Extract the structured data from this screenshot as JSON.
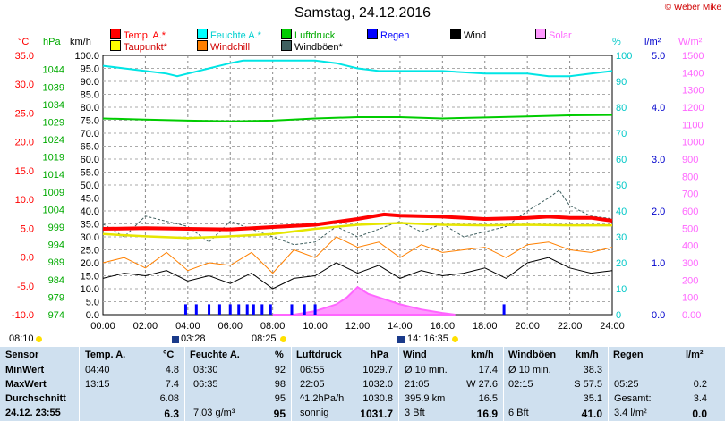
{
  "header": {
    "title": "Samstag, 24.12.2016",
    "copyright": "© Weber Mike"
  },
  "legend": [
    {
      "label": "Temp. A.*",
      "color": "#ff0000"
    },
    {
      "label": "Feuchte A.*",
      "color": "#00ffff"
    },
    {
      "label": "Luftdruck",
      "color": "#00cc00"
    },
    {
      "label": "Regen",
      "color": "#0000ff"
    },
    {
      "label": "Wind",
      "color": "#000000"
    },
    {
      "label": "Solar",
      "color": "#ff66ff"
    },
    {
      "label": "Taupunkt*",
      "color": "#ffff00"
    },
    {
      "label": "Windchill",
      "color": "#ff8000"
    },
    {
      "label": "Windböen*",
      "color": "#406060"
    }
  ],
  "colors": {
    "temp": "#ff0000",
    "humidity": "#00e5e5",
    "pressure": "#00cc00",
    "rain": "#0000ff",
    "wind": "#000000",
    "solar": "#ff66ff",
    "dewpoint": "#e6e600",
    "windchill": "#ff8000",
    "gust": "#406060",
    "table_bg": "#cfe0ef"
  },
  "chart_data": {
    "type": "line",
    "title": "Samstag, 24.12.2016",
    "x_ticks": [
      "00:00",
      "02:00",
      "04:00",
      "06:00",
      "08:00",
      "10:00",
      "12:00",
      "14:00",
      "16:00",
      "18:00",
      "20:00",
      "22:00",
      "24:00"
    ],
    "x_range_hours": [
      0,
      24
    ],
    "axes": {
      "temp": {
        "unit": "°C",
        "range": [
          -10,
          35
        ],
        "ticks": [
          "35.0",
          "30.0",
          "25.0",
          "20.0",
          "15.0",
          "10.0",
          "5.0",
          "0.0",
          "-5.0",
          "-10.0"
        ]
      },
      "pressure": {
        "unit": "hPa",
        "range": [
          974,
          1048
        ],
        "ticks": [
          "1044",
          "1039",
          "1034",
          "1029",
          "1024",
          "1019",
          "1014",
          "1009",
          "1004",
          "999",
          "994",
          "989",
          "984",
          "979",
          "974"
        ]
      },
      "wind": {
        "unit": "km/h",
        "range": [
          0,
          100
        ],
        "ticks": [
          "100.0",
          "95.0",
          "90.0",
          "85.0",
          "80.0",
          "75.0",
          "70.0",
          "65.0",
          "60.0",
          "55.0",
          "50.0",
          "45.0",
          "40.0",
          "35.0",
          "30.0",
          "25.0",
          "20.0",
          "15.0",
          "10.0",
          "5.0",
          "0.0"
        ]
      },
      "humidity": {
        "unit": "%",
        "range": [
          0,
          100
        ],
        "ticks": [
          "100",
          "90",
          "80",
          "70",
          "60",
          "50",
          "40",
          "30",
          "20",
          "10",
          "0"
        ]
      },
      "rain": {
        "unit": "l/m²",
        "range": [
          0,
          5
        ],
        "ticks": [
          "5.0",
          "4.0",
          "3.0",
          "2.0",
          "1.0",
          "0.0"
        ]
      },
      "solar": {
        "unit": "W/m²",
        "range": [
          0,
          1500
        ],
        "ticks": [
          "1500",
          "1400",
          "1300",
          "1200",
          "1100",
          "1000",
          "900",
          "800",
          "700",
          "600",
          "500",
          "400",
          "300",
          "200",
          "100",
          "0.00"
        ]
      }
    },
    "series": [
      {
        "name": "Temp. A.*",
        "axis": "temp",
        "x": [
          0,
          2,
          4,
          6,
          8,
          10,
          12,
          13.25,
          14,
          16,
          18,
          20,
          21,
          22,
          23,
          24
        ],
        "y": [
          4.9,
          5.0,
          4.9,
          4.8,
          5.2,
          5.6,
          6.6,
          7.4,
          7.2,
          7.0,
          6.6,
          6.8,
          7.0,
          6.8,
          6.8,
          6.3
        ]
      },
      {
        "name": "Taupunkt*",
        "axis": "temp",
        "x": [
          0,
          2,
          4,
          6,
          8,
          10,
          12,
          14,
          16,
          18,
          20,
          22,
          24
        ],
        "y": [
          4.0,
          3.6,
          3.3,
          3.6,
          4.0,
          4.9,
          5.6,
          5.9,
          5.6,
          5.5,
          5.6,
          5.5,
          5.5
        ]
      },
      {
        "name": "Feuchte A.*",
        "axis": "humidity",
        "x": [
          0,
          1,
          2,
          3,
          3.5,
          4,
          5,
          6,
          6.6,
          8,
          10,
          11,
          12,
          13,
          14,
          16,
          18,
          19,
          20,
          21,
          22,
          23,
          24
        ],
        "y": [
          96,
          95,
          94,
          93,
          92,
          93,
          95,
          97,
          98,
          98,
          98,
          97,
          95,
          94,
          94,
          94,
          93,
          93,
          93,
          92,
          92,
          93,
          94
        ]
      },
      {
        "name": "Luftdruck",
        "axis": "pressure",
        "x": [
          0,
          2,
          4,
          6,
          8,
          10,
          12,
          14,
          16,
          18,
          20,
          22,
          24
        ],
        "y": [
          1030.0,
          1029.7,
          1029.4,
          1029.2,
          1029.4,
          1030.0,
          1030.4,
          1030.4,
          1030.0,
          1030.3,
          1030.6,
          1030.9,
          1031.0
        ]
      },
      {
        "name": "Wind",
        "axis": "wind",
        "x": [
          0,
          1,
          2,
          3,
          4,
          5,
          6,
          7,
          8,
          9,
          10,
          11,
          12,
          13,
          14,
          15,
          16,
          17,
          18,
          19,
          20,
          21,
          22,
          23,
          24
        ],
        "y": [
          14,
          16,
          15,
          17,
          13,
          15,
          12,
          16,
          10,
          14,
          15,
          20,
          16,
          19,
          14,
          17,
          15,
          16,
          18,
          14,
          20,
          22,
          18,
          16,
          17
        ]
      },
      {
        "name": "Windchill",
        "axis": "wind",
        "x": [
          0,
          1,
          2,
          3,
          4,
          5,
          6,
          7,
          8,
          9,
          10,
          11,
          12,
          13,
          14,
          15,
          16,
          17,
          18,
          19,
          20,
          21,
          22,
          23,
          24
        ],
        "y": [
          20,
          22,
          18,
          24,
          17,
          20,
          19,
          24,
          16,
          25,
          22,
          30,
          26,
          28,
          22,
          27,
          24,
          25,
          26,
          22,
          27,
          28,
          25,
          24,
          26
        ]
      },
      {
        "name": "Windböen*",
        "axis": "wind",
        "x": [
          0,
          1,
          2,
          3,
          4,
          5,
          6,
          7,
          8,
          9,
          10,
          11,
          12,
          13,
          14,
          15,
          16,
          17,
          18,
          19,
          20,
          21,
          21.5,
          22,
          23,
          24
        ],
        "y": [
          35,
          30,
          38,
          36,
          34,
          28,
          36,
          33,
          30,
          27,
          28,
          34,
          30,
          33,
          36,
          32,
          35,
          30,
          32,
          34,
          40,
          45,
          48,
          42,
          38,
          37
        ]
      },
      {
        "name": "Solar",
        "axis": "solar",
        "x": [
          8,
          9,
          10,
          11,
          11.5,
          12,
          12.5,
          13,
          14,
          15,
          16,
          16.6
        ],
        "y": [
          0,
          0,
          20,
          60,
          100,
          160,
          120,
          100,
          60,
          30,
          10,
          0
        ]
      },
      {
        "name": "Regen",
        "axis": "rain",
        "x": [
          3.9,
          4.4,
          5.0,
          5.5,
          6.0,
          6.4,
          6.8,
          7.1,
          7.5,
          7.9,
          8.9,
          9.5,
          10.0,
          18.9
        ],
        "y": [
          0.2,
          0.2,
          0.2,
          0.2,
          0.2,
          0.2,
          0.2,
          0.2,
          0.2,
          0.2,
          0.2,
          0.2,
          0.2,
          0.2
        ]
      }
    ]
  },
  "sunbar": {
    "sunrise_time": "08:10",
    "moonset_label": "03:28",
    "sun_label": "08:25",
    "moon_label": "14: 16:35"
  },
  "table": {
    "headers": {
      "sensor": "Sensor",
      "temp": "Temp. A.",
      "temp_unit": "°C",
      "hum": "Feuchte A.",
      "hum_unit": "%",
      "press": "Luftdruck",
      "press_unit": "hPa",
      "wind": "Wind",
      "wind_unit": "km/h",
      "gust": "Windböen",
      "gust_unit": "km/h",
      "rain": "Regen",
      "rain_unit": "l/m²"
    },
    "rows": [
      {
        "label": "MinWert",
        "temp_time": "04:40",
        "temp": "4.8",
        "hum_time": "03:30",
        "hum": "92",
        "press_time": "06:55",
        "press": "1029.7",
        "wind_time": "Ø 10 min.",
        "wind": "17.4",
        "gust_time": "Ø 10 min.",
        "gust": "38.3",
        "rain_time": "",
        "rain": ""
      },
      {
        "label": "MaxWert",
        "temp_time": "13:15",
        "temp": "7.4",
        "hum_time": "06:35",
        "hum": "98",
        "press_time": "22:05",
        "press": "1032.0",
        "wind_time": "21:05",
        "wind": "W 27.6",
        "gust_time": "02:15",
        "gust": "S 57.5",
        "rain_time": "05:25",
        "rain": "0.2"
      },
      {
        "label": "Durchschnitt",
        "temp_time": "",
        "temp": "6.08",
        "hum_time": "",
        "hum": "95",
        "press_time": "^1.2hPa/h",
        "press": "1030.8",
        "wind_time": "395.9 km",
        "wind": "16.5",
        "gust_time": "",
        "gust": "35.1",
        "rain_time": "Gesamt:",
        "rain": "3.4"
      },
      {
        "label": "24.12. 23:55",
        "temp_time": "",
        "temp": "6.3",
        "hum_time": "7.03 g/m³",
        "hum": "95",
        "press_time": "sonnig",
        "press": "1031.7",
        "wind_time": "3 Bft",
        "wind": "16.9",
        "gust_time": "6 Bft",
        "gust": "41.0",
        "rain_time": "3.4 l/m²",
        "rain": "0.0"
      }
    ]
  }
}
